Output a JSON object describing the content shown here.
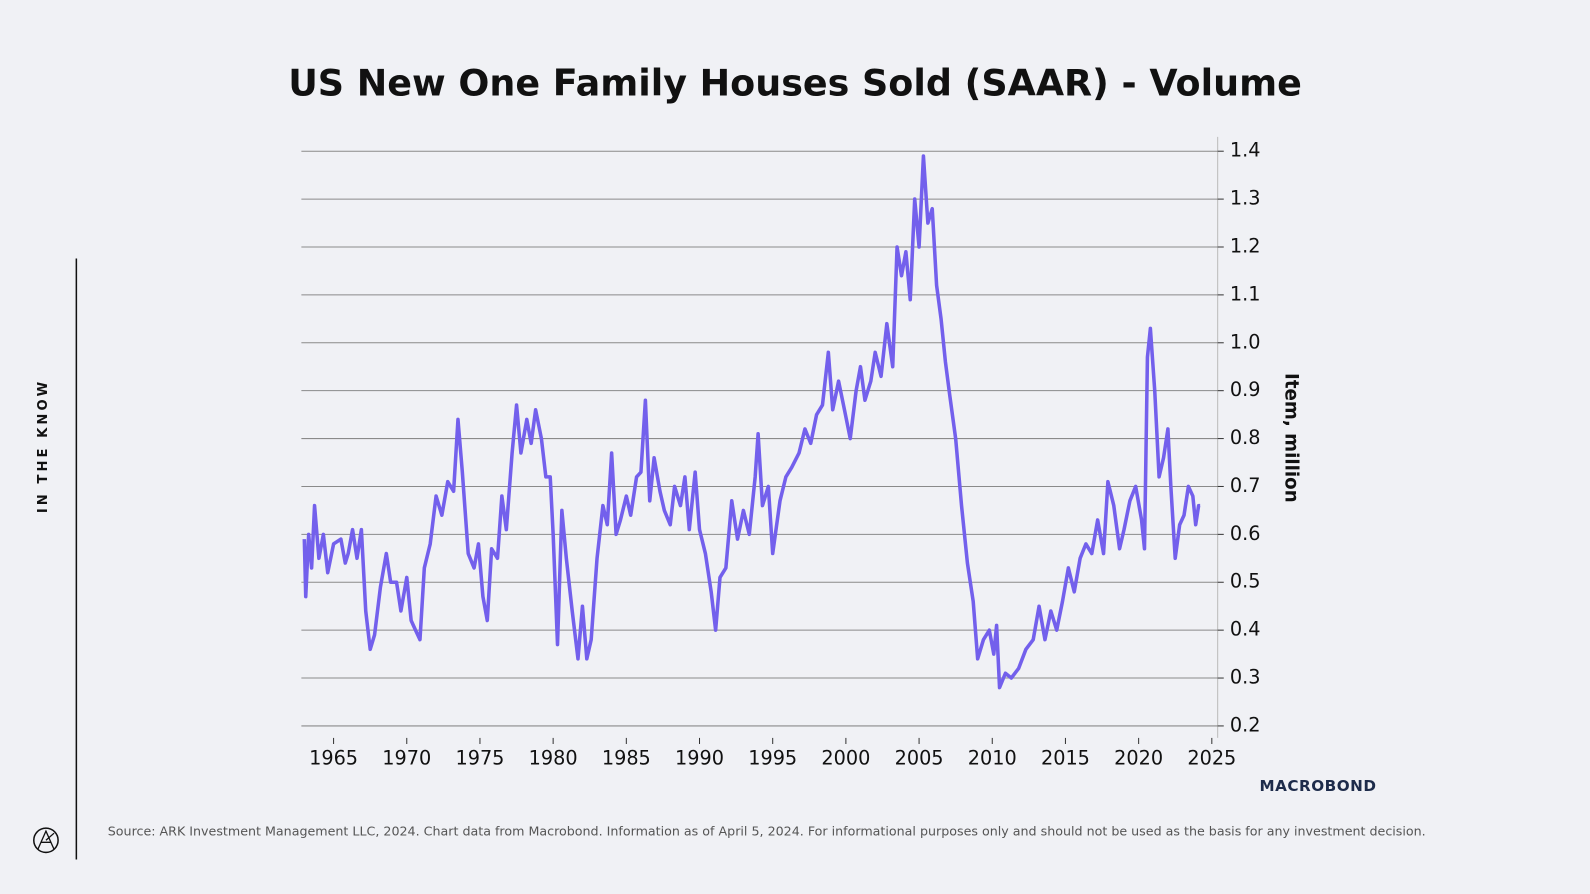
{
  "chart_data": {
    "type": "line",
    "title": "US New One Family Houses Sold (SAAR) - Volume",
    "y_axis_label": "Item, million",
    "side_label": "IN THE KNOW",
    "brand": "MACROBOND",
    "source": "Source: ARK Investment Management LLC, 2024. Chart data from Macrobond. Information as of April 5, 2024. For informational purposes only and should not be used as the basis for any investment decision.",
    "x": [
      1963.0,
      1963.1,
      1963.3,
      1963.5,
      1963.7,
      1964.0,
      1964.3,
      1964.6,
      1965.0,
      1965.5,
      1965.8,
      1966.0,
      1966.3,
      1966.6,
      1966.9,
      1967.2,
      1967.5,
      1967.8,
      1968.2,
      1968.6,
      1968.9,
      1969.3,
      1969.6,
      1970.0,
      1970.3,
      1970.6,
      1970.9,
      1971.2,
      1971.6,
      1972.0,
      1972.4,
      1972.8,
      1973.2,
      1973.5,
      1973.8,
      1974.2,
      1974.6,
      1974.9,
      1975.2,
      1975.5,
      1975.8,
      1976.2,
      1976.5,
      1976.8,
      1977.2,
      1977.5,
      1977.8,
      1978.2,
      1978.5,
      1978.8,
      1979.2,
      1979.5,
      1979.8,
      1980.0,
      1980.3,
      1980.6,
      1980.9,
      1981.3,
      1981.7,
      1982.0,
      1982.3,
      1982.6,
      1983.0,
      1983.4,
      1983.7,
      1984.0,
      1984.3,
      1984.6,
      1985.0,
      1985.3,
      1985.7,
      1986.0,
      1986.3,
      1986.6,
      1986.9,
      1987.3,
      1987.6,
      1988.0,
      1988.3,
      1988.7,
      1989.0,
      1989.3,
      1989.7,
      1990.0,
      1990.4,
      1990.8,
      1991.1,
      1991.4,
      1991.8,
      1992.2,
      1992.6,
      1993.0,
      1993.4,
      1993.8,
      1994.0,
      1994.3,
      1994.7,
      1995.0,
      1995.5,
      1995.9,
      1996.3,
      1996.8,
      1997.2,
      1997.6,
      1998.0,
      1998.4,
      1998.8,
      1999.1,
      1999.5,
      1999.9,
      2000.3,
      2000.7,
      2001.0,
      2001.3,
      2001.7,
      2002.0,
      2002.4,
      2002.8,
      2003.2,
      2003.5,
      2003.8,
      2004.1,
      2004.4,
      2004.7,
      2005.0,
      2005.3,
      2005.6,
      2005.9,
      2006.2,
      2006.5,
      2006.8,
      2007.1,
      2007.5,
      2007.9,
      2008.3,
      2008.7,
      2009.0,
      2009.4,
      2009.8,
      2010.1,
      2010.3,
      2010.5,
      2010.9,
      2011.3,
      2011.8,
      2012.3,
      2012.8,
      2013.2,
      2013.6,
      2014.0,
      2014.4,
      2014.8,
      2015.2,
      2015.6,
      2016.0,
      2016.4,
      2016.8,
      2017.2,
      2017.6,
      2017.9,
      2018.3,
      2018.7,
      2019.0,
      2019.4,
      2019.8,
      2020.2,
      2020.4,
      2020.6,
      2020.8,
      2021.1,
      2021.4,
      2021.7,
      2022.0,
      2022.2,
      2022.5,
      2022.8,
      2023.1,
      2023.4,
      2023.7,
      2023.9,
      2024.1,
      2024.2
    ],
    "series": [
      {
        "name": "US New One Family Houses Sold",
        "color": "#7360ec",
        "values": [
          0.59,
          0.47,
          0.6,
          0.53,
          0.66,
          0.55,
          0.6,
          0.52,
          0.58,
          0.59,
          0.54,
          0.56,
          0.61,
          0.55,
          0.61,
          0.44,
          0.36,
          0.39,
          0.49,
          0.56,
          0.5,
          0.5,
          0.44,
          0.51,
          0.42,
          0.4,
          0.38,
          0.53,
          0.58,
          0.68,
          0.64,
          0.71,
          0.69,
          0.84,
          0.73,
          0.56,
          0.53,
          0.58,
          0.47,
          0.42,
          0.57,
          0.55,
          0.68,
          0.61,
          0.77,
          0.87,
          0.77,
          0.84,
          0.79,
          0.86,
          0.8,
          0.72,
          0.72,
          0.6,
          0.37,
          0.65,
          0.55,
          0.44,
          0.34,
          0.45,
          0.34,
          0.38,
          0.55,
          0.66,
          0.62,
          0.77,
          0.6,
          0.63,
          0.68,
          0.64,
          0.72,
          0.73,
          0.88,
          0.67,
          0.76,
          0.69,
          0.65,
          0.62,
          0.7,
          0.66,
          0.72,
          0.61,
          0.73,
          0.61,
          0.56,
          0.48,
          0.4,
          0.51,
          0.53,
          0.67,
          0.59,
          0.65,
          0.6,
          0.72,
          0.81,
          0.66,
          0.7,
          0.56,
          0.67,
          0.72,
          0.74,
          0.77,
          0.82,
          0.79,
          0.85,
          0.87,
          0.98,
          0.86,
          0.92,
          0.86,
          0.8,
          0.9,
          0.95,
          0.88,
          0.92,
          0.98,
          0.93,
          1.04,
          0.95,
          1.2,
          1.14,
          1.19,
          1.09,
          1.3,
          1.2,
          1.39,
          1.25,
          1.28,
          1.12,
          1.05,
          0.96,
          0.89,
          0.8,
          0.66,
          0.54,
          0.46,
          0.34,
          0.38,
          0.4,
          0.35,
          0.41,
          0.28,
          0.31,
          0.3,
          0.32,
          0.36,
          0.38,
          0.45,
          0.38,
          0.44,
          0.4,
          0.46,
          0.53,
          0.48,
          0.55,
          0.58,
          0.56,
          0.63,
          0.56,
          0.71,
          0.66,
          0.57,
          0.61,
          0.67,
          0.7,
          0.63,
          0.57,
          0.97,
          1.03,
          0.9,
          0.72,
          0.76,
          0.82,
          0.7,
          0.55,
          0.62,
          0.64,
          0.7,
          0.68,
          0.62,
          0.66,
          0.66
        ]
      }
    ],
    "xlim": [
      1962.8,
      2025.4
    ],
    "xticks": [
      1965,
      1970,
      1975,
      1980,
      1985,
      1990,
      1995,
      2000,
      2005,
      2010,
      2015,
      2020,
      2025
    ],
    "ylim": [
      0.175,
      1.43
    ],
    "yticks": [
      0.2,
      0.3,
      0.4,
      0.5,
      0.6,
      0.7,
      0.8,
      0.9,
      {
        "value": 1,
        "label": "1.0"
      },
      1.1,
      1.2,
      1.3,
      1.4
    ],
    "y_axis_side": "right",
    "grid": true
  }
}
